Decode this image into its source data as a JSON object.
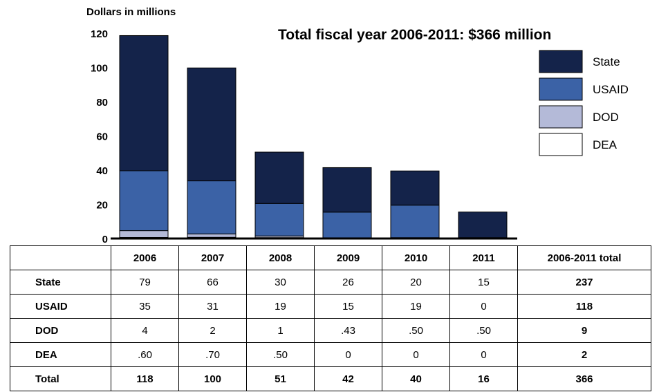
{
  "chart_data": {
    "type": "bar",
    "stacked": true,
    "title": "Total fiscal year 2006-2011: $366 million",
    "ylabel": "Dollars in millions",
    "ylim": [
      0,
      120
    ],
    "yticks": [
      0,
      20,
      40,
      60,
      80,
      100,
      120
    ],
    "categories": [
      "2006",
      "2007",
      "2008",
      "2009",
      "2010",
      "2011"
    ],
    "series": [
      {
        "name": "DEA",
        "color": "#ffffff",
        "values": [
          0.6,
          0.7,
          0.5,
          0,
          0,
          0
        ]
      },
      {
        "name": "DOD",
        "color": "#b4bad8",
        "values": [
          4,
          2,
          1,
          0.43,
          0.5,
          0.5
        ]
      },
      {
        "name": "USAID",
        "color": "#3b62a6",
        "values": [
          35,
          31,
          19,
          15,
          19,
          0
        ]
      },
      {
        "name": "State",
        "color": "#14234a",
        "values": [
          79,
          66,
          30,
          26,
          20,
          15
        ]
      }
    ],
    "legend": [
      "State",
      "USAID",
      "DOD",
      "DEA"
    ],
    "legend_position": "top-right"
  },
  "table": {
    "header": [
      "2006",
      "2007",
      "2008",
      "2009",
      "2010",
      "2011",
      "2006-2011 total"
    ],
    "rows": [
      {
        "label": "State",
        "values": [
          "79",
          "66",
          "30",
          "26",
          "20",
          "15"
        ],
        "total": "237"
      },
      {
        "label": "USAID",
        "values": [
          "35",
          "31",
          "19",
          "15",
          "19",
          "0"
        ],
        "total": "118"
      },
      {
        "label": "DOD",
        "values": [
          "4",
          "2",
          "1",
          ".43",
          ".50",
          ".50"
        ],
        "total": "9"
      },
      {
        "label": "DEA",
        "values": [
          ".60",
          ".70",
          ".50",
          "0",
          "0",
          "0"
        ],
        "total": "2"
      },
      {
        "label": "Total",
        "values": [
          "118",
          "100",
          "51",
          "42",
          "40",
          "16"
        ],
        "total": "366"
      }
    ]
  }
}
